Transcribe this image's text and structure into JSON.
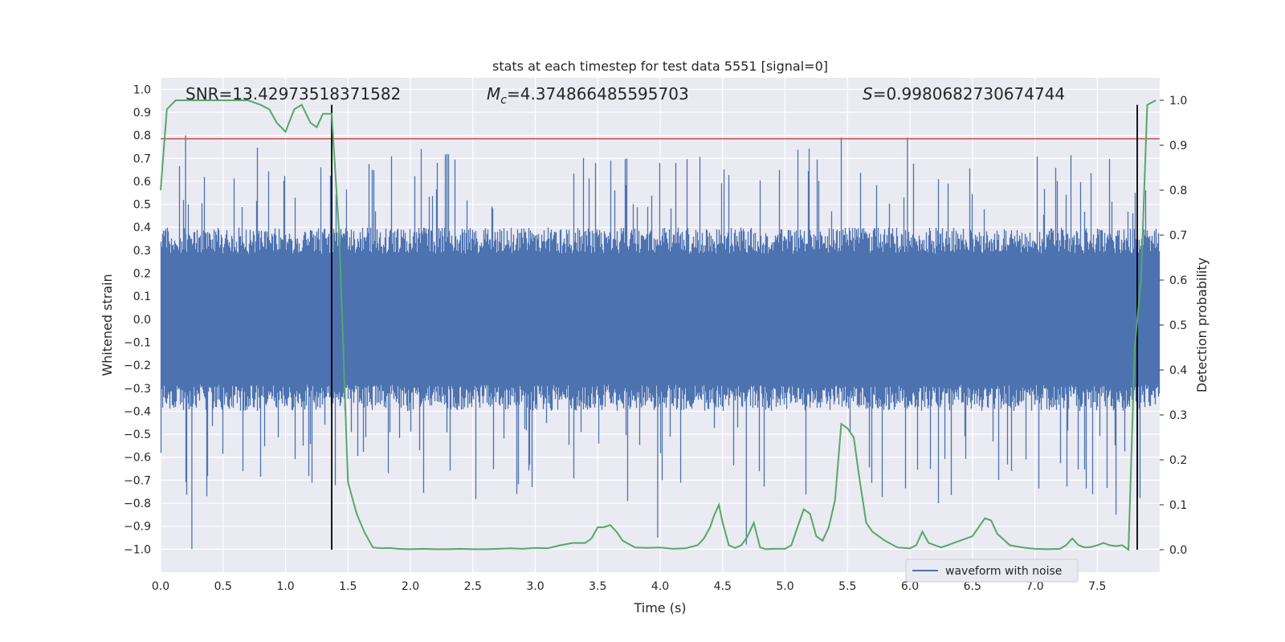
{
  "chart_data": {
    "type": "line",
    "title": "stats at each timestep for test data 5551 [signal=0]",
    "xlabel": "Time (s)",
    "ylabel_left": "Whitened strain",
    "ylabel_right": "Detection probability",
    "xlim": [
      0.0,
      8.0
    ],
    "ylim_left": [
      -1.1,
      1.05
    ],
    "ylim_right": [
      -0.05,
      1.05
    ],
    "x_ticks": [
      "0.0",
      "0.5",
      "1.0",
      "1.5",
      "2.0",
      "2.5",
      "3.0",
      "3.5",
      "4.0",
      "4.5",
      "5.0",
      "5.5",
      "6.0",
      "6.5",
      "7.0",
      "7.5"
    ],
    "left_ticks": [
      "1.0",
      "0.9",
      "0.8",
      "0.7",
      "0.6",
      "0.5",
      "0.4",
      "0.3",
      "0.2",
      "0.1",
      "0.0",
      "−0.1",
      "−0.2",
      "−0.3",
      "−0.4",
      "−0.5",
      "−0.6",
      "−0.7",
      "−0.8",
      "−0.9",
      "−1.0"
    ],
    "right_ticks": [
      "1.0",
      "0.9",
      "0.8",
      "0.7",
      "0.6",
      "0.5",
      "0.4",
      "0.3",
      "0.2",
      "0.1",
      "0.0"
    ],
    "annotations": {
      "snr": "SNR=13.42973518371582",
      "mc_symbol": "M",
      "mc_sub": "c",
      "mc_value": "=4.374866485595703",
      "s_symbol": "S",
      "s_value": "=0.9980682730674744"
    },
    "threshold_left": 0.785,
    "vertical_lines_time": [
      1.37,
      7.82
    ],
    "waveform": {
      "name": "waveform with noise",
      "color": "#4c72b0",
      "envelope_typical": 0.38,
      "max_peak": 0.8,
      "min_peak": -1.0
    },
    "detection_probability": {
      "name": "Detection probability",
      "color": "#55a868",
      "x": [
        0.0,
        0.05,
        0.12,
        0.2,
        0.3,
        0.4,
        0.5,
        0.6,
        0.7,
        0.8,
        0.87,
        0.93,
        1.0,
        1.07,
        1.13,
        1.2,
        1.25,
        1.3,
        1.37,
        1.43,
        1.5,
        1.57,
        1.63,
        1.7,
        1.77,
        1.83,
        1.9,
        2.0,
        2.1,
        2.2,
        2.3,
        2.4,
        2.5,
        2.6,
        2.7,
        2.8,
        2.9,
        3.0,
        3.1,
        3.2,
        3.3,
        3.4,
        3.45,
        3.5,
        3.55,
        3.6,
        3.65,
        3.7,
        3.8,
        3.9,
        4.0,
        4.1,
        4.2,
        4.3,
        4.35,
        4.4,
        4.43,
        4.47,
        4.5,
        4.55,
        4.6,
        4.65,
        4.7,
        4.75,
        4.8,
        4.85,
        4.9,
        5.0,
        5.05,
        5.1,
        5.15,
        5.2,
        5.25,
        5.3,
        5.35,
        5.4,
        5.45,
        5.5,
        5.55,
        5.6,
        5.65,
        5.7,
        5.8,
        5.9,
        6.0,
        6.05,
        6.1,
        6.15,
        6.2,
        6.25,
        6.3,
        6.4,
        6.5,
        6.6,
        6.65,
        6.7,
        6.8,
        6.9,
        7.0,
        7.1,
        7.2,
        7.25,
        7.3,
        7.35,
        7.4,
        7.45,
        7.5,
        7.55,
        7.6,
        7.65,
        7.7,
        7.75,
        7.8,
        7.85,
        7.9,
        7.97
      ],
      "y": [
        0.8,
        0.98,
        1.0,
        1.0,
        1.0,
        1.0,
        1.0,
        1.0,
        1.0,
        0.99,
        0.98,
        0.95,
        0.93,
        0.98,
        0.99,
        0.95,
        0.94,
        0.97,
        0.97,
        0.7,
        0.15,
        0.08,
        0.04,
        0.005,
        0.003,
        0.004,
        0.002,
        0.001,
        0.002,
        0.001,
        0.001,
        0.002,
        0.001,
        0.001,
        0.002,
        0.003,
        0.002,
        0.004,
        0.003,
        0.01,
        0.015,
        0.015,
        0.025,
        0.05,
        0.05,
        0.055,
        0.04,
        0.02,
        0.005,
        0.004,
        0.005,
        0.002,
        0.003,
        0.01,
        0.025,
        0.05,
        0.075,
        0.1,
        0.06,
        0.01,
        0.004,
        0.01,
        0.03,
        0.06,
        0.005,
        0.001,
        0.002,
        0.002,
        0.01,
        0.05,
        0.09,
        0.08,
        0.03,
        0.02,
        0.05,
        0.11,
        0.28,
        0.27,
        0.25,
        0.15,
        0.06,
        0.04,
        0.02,
        0.005,
        0.003,
        0.01,
        0.04,
        0.015,
        0.01,
        0.005,
        0.01,
        0.02,
        0.03,
        0.07,
        0.065,
        0.035,
        0.01,
        0.005,
        0.002,
        0.001,
        0.002,
        0.01,
        0.025,
        0.01,
        0.005,
        0.006,
        0.01,
        0.015,
        0.01,
        0.008,
        0.01,
        0.0,
        0.45,
        0.6,
        0.99,
        1.0
      ]
    }
  },
  "legend": {
    "label": "waveform with noise"
  }
}
